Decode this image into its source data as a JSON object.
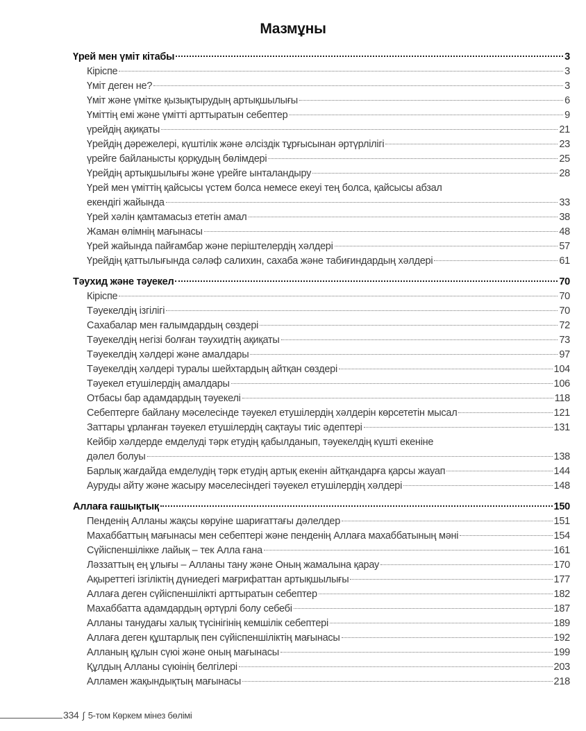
{
  "title": "Мазмұны",
  "sections": [
    {
      "title": "Үрей мен үміт кітабы",
      "page": "3",
      "items": [
        {
          "title": "Кіріспе",
          "page": "3"
        },
        {
          "title": "Үміт деген не?",
          "page": "3"
        },
        {
          "title": "Үміт және үмітке қызықтырудың артықшылығы",
          "page": "6"
        },
        {
          "title": "Үміттің емі және үмітті арттыратын себептер",
          "page": "9"
        },
        {
          "title": "үрейдің ақиқаты",
          "page": "21"
        },
        {
          "title": "Үрейдің дәрежелері, күштілік және әлсіздік тұрғысынан әртүрлілігі",
          "page": "23"
        },
        {
          "title": "үрейге байланысты қорқудың бөлімдері",
          "page": "25"
        },
        {
          "title": "Үрейдің артықшылығы және үрейге ынталандыру",
          "page": "28"
        },
        {
          "title": "Үрей мен үміттің қайсысы үстем болса немесе екеуі тең болса, қайсысы абзал",
          "title2": "екендігі жайында",
          "page": "33"
        },
        {
          "title": "Үрей хәлін қамтамасыз ететін амал",
          "page": "38"
        },
        {
          "title": "Жаман өлімнің мағынасы",
          "page": "48"
        },
        {
          "title": "Үрей жайында пайғамбар және періштелердің хәлдері",
          "page": "57"
        },
        {
          "title": "Үрейдің қаттылығында сәләф салихин, сахаба және табиғиндардың хәлдері",
          "page": "61"
        }
      ]
    },
    {
      "title": "Тәухид және тәуекел",
      "page": "70",
      "items": [
        {
          "title": "Кіріспе",
          "page": "70"
        },
        {
          "title": "Тәуекелдің ізгілігі",
          "page": "70"
        },
        {
          "title": "Сахабалар мен ғалымдардың сөздері",
          "page": "72"
        },
        {
          "title": "Тәуекелдің негізі болған тәухидтің ақиқаты",
          "page": "73"
        },
        {
          "title": "Тәуекелдің хәлдері және амалдары",
          "page": "97"
        },
        {
          "title": "Тәуекелдің хәлдері туралы шейхтардың айтқан сөздері",
          "page": "104"
        },
        {
          "title": "Тәуекел етушілердің амалдары",
          "page": "106"
        },
        {
          "title": "Отбасы бар адамдардың тәуекелі",
          "page": "118"
        },
        {
          "title": "Себептерге байлану мәселесінде тәуекел етушілердің хәлдерін көрсететін мысал",
          "page": "121"
        },
        {
          "title": "Заттары ұрланған тәуекел етушілердің сақтауы тиіс әдептері",
          "page": "131"
        },
        {
          "title": "Кейбір хәлдерде емделуді тәрк етудің қабылданып, тәуекелдің күшті екеніне",
          "title2": "дәлел болуы",
          "page": "138"
        },
        {
          "title": "Барлық жағдайда емделудің тәрк етудің артық екенін айтқандарға қарсы жауап",
          "page": "144"
        },
        {
          "title": "Ауруды айту және жасыру мәселесіндегі тәуекел етушілердің хәлдері",
          "page": "148"
        }
      ]
    },
    {
      "title": "Аллаға ғашықтық",
      "page": "150",
      "items": [
        {
          "title": "Пенденің Алланы жақсы көруіне шариғаттағы дәлелдер",
          "page": "151"
        },
        {
          "title": "Махаббаттың мағынасы мен себептері және пенденің Аллаға махаббатының мәні",
          "page": "154"
        },
        {
          "title": "Сүйіспеншілікке лайық – тек Алла ғана",
          "page": "161"
        },
        {
          "title": "Ләззаттың ең ұлығы – Алланы тану және Оның жамалына қарау",
          "page": "170"
        },
        {
          "title": "Ақыреттегі ізгіліктің дүниедегі мағрифаттан артықшылығы",
          "page": "177"
        },
        {
          "title": "Аллаға деген сүйіспеншілікті арттыратын себептер",
          "page": "182"
        },
        {
          "title": "Махаббатта адамдардың әртүрлі болу себебі",
          "page": "187"
        },
        {
          "title": "Алланы танудағы халық түсінігінің кемшілік себептері",
          "page": "189"
        },
        {
          "title": "Аллаға деген құштарлық пен сүйіспеншіліктің мағынасы",
          "page": "192"
        },
        {
          "title": "Алланың құлын сүюі және оның мағынасы",
          "page": "199"
        },
        {
          "title": "Құлдың Алланы сүюінің белгілері",
          "page": "203"
        },
        {
          "title": "Алламен жақындықтың мағынасы",
          "page": "218"
        }
      ]
    }
  ],
  "footer": {
    "page_number": "334",
    "separator": "∫",
    "running_title": "5-том  Көркем мінез бөлімі"
  }
}
